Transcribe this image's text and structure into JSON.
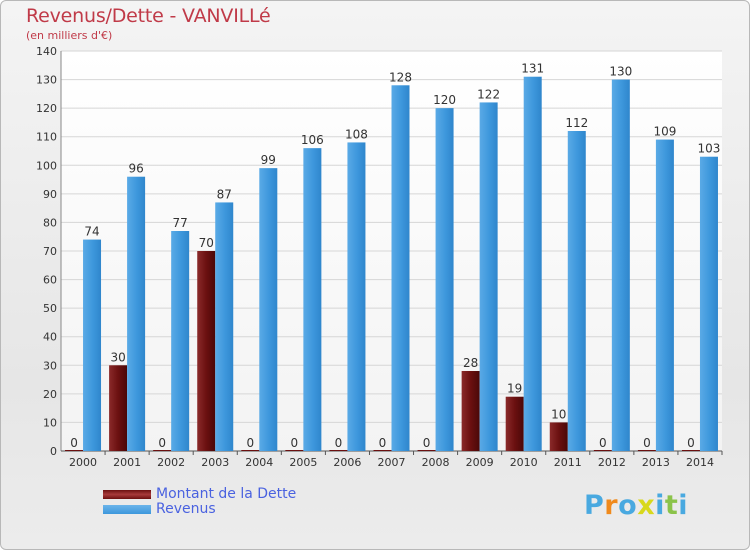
{
  "title": "Revenus/Dette - VANVILLé",
  "subtitle": "(en milliers d'€)",
  "legend": [
    {
      "label": "Montant de la Dette",
      "color": "#6b1010"
    },
    {
      "label": "Revenus",
      "color": "#3d97dc"
    }
  ],
  "brand": {
    "text": "Proxiti",
    "letters": [
      "P",
      "r",
      "o",
      "x",
      "i",
      "t",
      "i"
    ],
    "colors": [
      "#49a9e0",
      "#f08a1c",
      "#49a9e0",
      "#d8d81c",
      "#49a9e0",
      "#8bc34a",
      "#49a9e0"
    ]
  },
  "chart_data": {
    "type": "bar",
    "categories": [
      "2000",
      "2001",
      "2002",
      "2003",
      "2004",
      "2005",
      "2006",
      "2007",
      "2008",
      "2009",
      "2010",
      "2011",
      "2012",
      "2013",
      "2014"
    ],
    "series": [
      {
        "name": "Montant de la Dette",
        "color": "#6b1010",
        "values": [
          0,
          30,
          0,
          70,
          0,
          0,
          0,
          0,
          0,
          28,
          19,
          10,
          0,
          0,
          0
        ]
      },
      {
        "name": "Revenus",
        "color": "#3d97dc",
        "values": [
          74,
          96,
          77,
          87,
          99,
          106,
          108,
          128,
          120,
          122,
          131,
          112,
          130,
          109,
          103
        ]
      }
    ],
    "ylim": [
      0,
      140
    ],
    "yticks": [
      0,
      10,
      20,
      30,
      40,
      50,
      60,
      70,
      80,
      90,
      100,
      110,
      120,
      130,
      140
    ],
    "grid": true,
    "legend_position": "bottom-left"
  }
}
